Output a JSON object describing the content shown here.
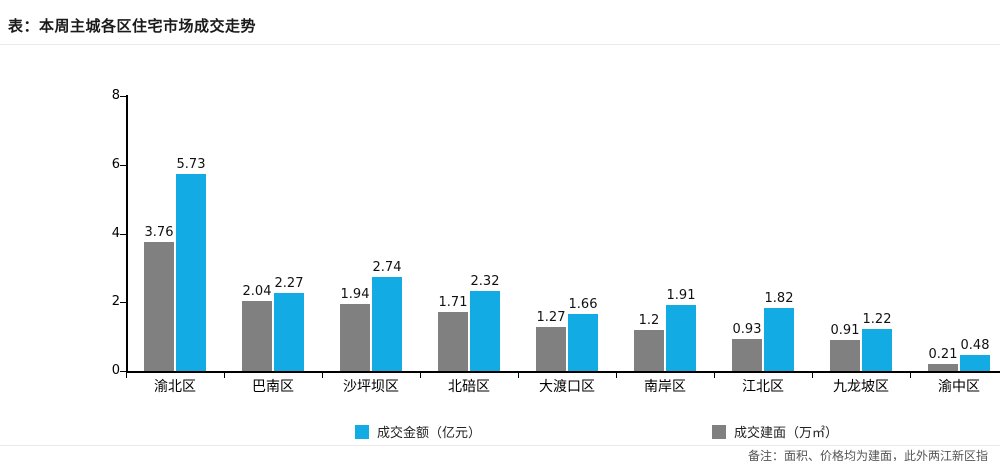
{
  "header": {
    "title": "表：本周主城各区住宅市场成交走势"
  },
  "chart_data": {
    "type": "bar",
    "title": "本周主城各区住宅市场成交走势",
    "categories": [
      "渝北区",
      "巴南区",
      "沙坪坝区",
      "北碚区",
      "大渡口区",
      "南岸区",
      "江北区",
      "九龙坡区",
      "渝中区"
    ],
    "series": [
      {
        "name": "成交建面（万㎡）",
        "color": "#808080",
        "values": [
          3.76,
          2.04,
          1.94,
          1.71,
          1.27,
          1.2,
          0.93,
          0.91,
          0.21
        ]
      },
      {
        "name": "成交金额（亿元）",
        "color": "#12ABE3",
        "values": [
          5.73,
          2.27,
          2.74,
          2.32,
          1.66,
          1.91,
          1.82,
          1.22,
          0.48
        ]
      }
    ],
    "xlabel": "",
    "ylabel": "",
    "ylim": [
      0,
      8
    ],
    "yticks": [
      0,
      2,
      4,
      6,
      8
    ],
    "grid": false,
    "value_labels": true,
    "legend_position": "bottom"
  },
  "legend": {
    "items": [
      {
        "label": "成交金额（亿元）",
        "color": "#12ABE3"
      },
      {
        "label": "成交建面（万㎡）",
        "color": "#808080"
      }
    ]
  },
  "footer": {
    "note": "备注：面积、价格均为建面，此外两江新区指"
  }
}
